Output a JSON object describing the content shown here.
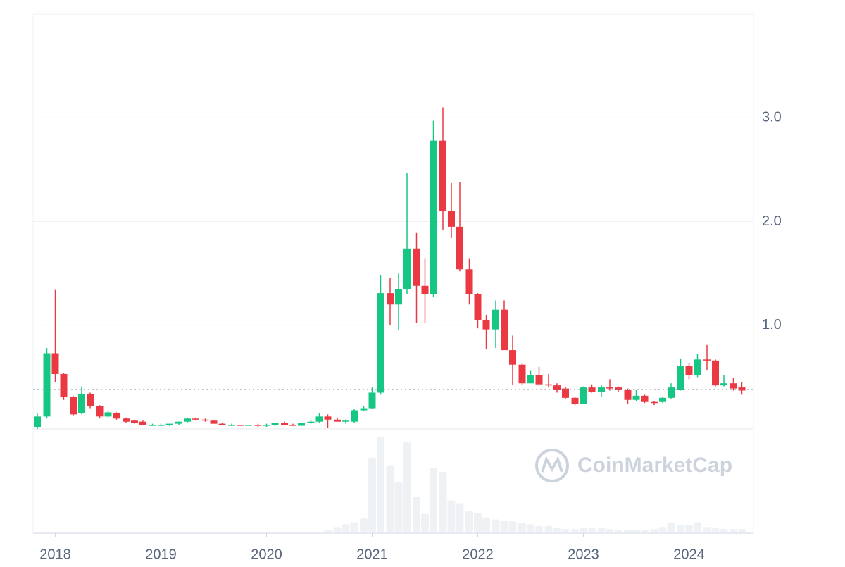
{
  "chart_data": {
    "type": "candlestick",
    "watermark": "CoinMarketCap",
    "x": [
      2017.83,
      2017.92,
      2018.0,
      2018.08,
      2018.17,
      2018.25,
      2018.33,
      2018.42,
      2018.5,
      2018.58,
      2018.67,
      2018.75,
      2018.83,
      2018.92,
      2019.0,
      2019.08,
      2019.17,
      2019.25,
      2019.33,
      2019.42,
      2019.5,
      2019.58,
      2019.67,
      2019.75,
      2019.83,
      2019.92,
      2020.0,
      2020.08,
      2020.17,
      2020.25,
      2020.33,
      2020.42,
      2020.5,
      2020.58,
      2020.67,
      2020.75,
      2020.83,
      2020.92,
      2021.0,
      2021.08,
      2021.17,
      2021.25,
      2021.33,
      2021.42,
      2021.5,
      2021.58,
      2021.67,
      2021.75,
      2021.83,
      2021.92,
      2022.0,
      2022.08,
      2022.17,
      2022.25,
      2022.33,
      2022.42,
      2022.5,
      2022.58,
      2022.67,
      2022.75,
      2022.83,
      2022.92,
      2023.0,
      2023.08,
      2023.17,
      2023.25,
      2023.33,
      2023.42,
      2023.5,
      2023.58,
      2023.67,
      2023.75,
      2023.83,
      2023.92,
      2024.0,
      2024.08,
      2024.17,
      2024.25,
      2024.33,
      2024.42,
      2024.5
    ],
    "open": [
      0.02,
      0.12,
      0.73,
      0.53,
      0.31,
      0.15,
      0.34,
      0.22,
      0.12,
      0.15,
      0.1,
      0.08,
      0.07,
      0.04,
      0.04,
      0.04,
      0.05,
      0.07,
      0.1,
      0.09,
      0.08,
      0.05,
      0.04,
      0.04,
      0.03,
      0.04,
      0.03,
      0.04,
      0.06,
      0.04,
      0.03,
      0.06,
      0.07,
      0.12,
      0.09,
      0.07,
      0.07,
      0.18,
      0.2,
      0.35,
      1.31,
      1.2,
      1.35,
      1.74,
      1.38,
      1.3,
      2.78,
      2.1,
      1.95,
      1.54,
      1.3,
      1.05,
      0.96,
      1.15,
      0.76,
      0.62,
      0.44,
      0.52,
      0.43,
      0.42,
      0.39,
      0.3,
      0.24,
      0.4,
      0.36,
      0.4,
      0.4,
      0.38,
      0.28,
      0.32,
      0.26,
      0.26,
      0.3,
      0.38,
      0.61,
      0.52,
      0.67,
      0.66,
      0.42,
      0.44,
      0.4
    ],
    "high": [
      0.15,
      0.78,
      1.34,
      0.54,
      0.32,
      0.41,
      0.35,
      0.23,
      0.18,
      0.16,
      0.11,
      0.09,
      0.08,
      0.05,
      0.05,
      0.05,
      0.07,
      0.11,
      0.11,
      0.1,
      0.08,
      0.06,
      0.05,
      0.04,
      0.04,
      0.05,
      0.05,
      0.06,
      0.07,
      0.05,
      0.06,
      0.08,
      0.15,
      0.14,
      0.11,
      0.09,
      0.19,
      0.22,
      0.4,
      1.48,
      1.46,
      1.5,
      2.47,
      1.89,
      1.64,
      2.97,
      3.1,
      2.37,
      2.38,
      1.64,
      1.31,
      1.1,
      1.24,
      1.24,
      0.9,
      0.63,
      0.56,
      0.6,
      0.53,
      0.44,
      0.41,
      0.31,
      0.41,
      0.43,
      0.42,
      0.48,
      0.41,
      0.39,
      0.38,
      0.33,
      0.27,
      0.31,
      0.44,
      0.68,
      0.64,
      0.72,
      0.81,
      0.67,
      0.52,
      0.49,
      0.45
    ],
    "low": [
      0.0,
      0.1,
      0.45,
      0.28,
      0.13,
      0.14,
      0.2,
      0.1,
      0.11,
      0.09,
      0.06,
      0.05,
      0.04,
      0.03,
      0.03,
      0.03,
      0.04,
      0.06,
      0.08,
      0.07,
      0.05,
      0.04,
      0.03,
      0.03,
      0.03,
      0.02,
      0.02,
      0.03,
      0.04,
      0.03,
      0.03,
      0.05,
      0.06,
      0.01,
      0.07,
      0.05,
      0.06,
      0.17,
      0.19,
      0.33,
      1.0,
      0.95,
      1.3,
      1.02,
      1.02,
      1.27,
      1.92,
      1.84,
      1.52,
      1.2,
      0.97,
      0.77,
      0.78,
      0.76,
      0.42,
      0.42,
      0.44,
      0.43,
      0.4,
      0.35,
      0.29,
      0.23,
      0.24,
      0.35,
      0.31,
      0.37,
      0.36,
      0.24,
      0.27,
      0.25,
      0.23,
      0.25,
      0.29,
      0.37,
      0.48,
      0.5,
      0.57,
      0.41,
      0.41,
      0.37,
      0.33
    ],
    "close": [
      0.12,
      0.73,
      0.53,
      0.31,
      0.14,
      0.34,
      0.22,
      0.12,
      0.16,
      0.1,
      0.07,
      0.06,
      0.04,
      0.04,
      0.04,
      0.05,
      0.07,
      0.1,
      0.09,
      0.08,
      0.05,
      0.04,
      0.04,
      0.03,
      0.04,
      0.03,
      0.04,
      0.06,
      0.04,
      0.03,
      0.06,
      0.07,
      0.12,
      0.09,
      0.07,
      0.08,
      0.18,
      0.2,
      0.35,
      1.31,
      1.2,
      1.35,
      1.74,
      1.38,
      1.3,
      2.78,
      2.1,
      1.95,
      1.54,
      1.3,
      1.05,
      0.96,
      1.15,
      0.76,
      0.62,
      0.44,
      0.52,
      0.43,
      0.42,
      0.38,
      0.3,
      0.24,
      0.4,
      0.36,
      0.4,
      0.39,
      0.38,
      0.28,
      0.32,
      0.26,
      0.25,
      0.3,
      0.4,
      0.61,
      0.52,
      0.67,
      0.66,
      0.42,
      0.44,
      0.39,
      0.37
    ],
    "volume": [
      0,
      0,
      0,
      0,
      0,
      0,
      0,
      0,
      0,
      0,
      0,
      0,
      0,
      0,
      0,
      0,
      0,
      0,
      0,
      0,
      0,
      0,
      0,
      0,
      0,
      0,
      0,
      0,
      0,
      0,
      0,
      0,
      0,
      2,
      5,
      8,
      10,
      14,
      78,
      100,
      70,
      52,
      94,
      37,
      19,
      67,
      63,
      33,
      30,
      22,
      20,
      15,
      13,
      12,
      11,
      9,
      8,
      6,
      6,
      4,
      3,
      3,
      4,
      4,
      4,
      3,
      2,
      2,
      2,
      2,
      3,
      5,
      10,
      7,
      7,
      10,
      5,
      4,
      3,
      3,
      3
    ],
    "current_price": 0.38,
    "up_color": "#16c784",
    "down_color": "#ea3943",
    "volume_color": "#eff2f5",
    "ylim": [
      0,
      4
    ],
    "yticks": [
      {
        "value": 1,
        "label": "1.0"
      },
      {
        "value": 2,
        "label": "2.0"
      },
      {
        "value": 3,
        "label": "3.0"
      }
    ],
    "xlim": [
      2017.79,
      2024.61
    ],
    "xticks": [
      2018,
      2019,
      2020,
      2021,
      2022,
      2023,
      2024
    ],
    "grid": true
  }
}
